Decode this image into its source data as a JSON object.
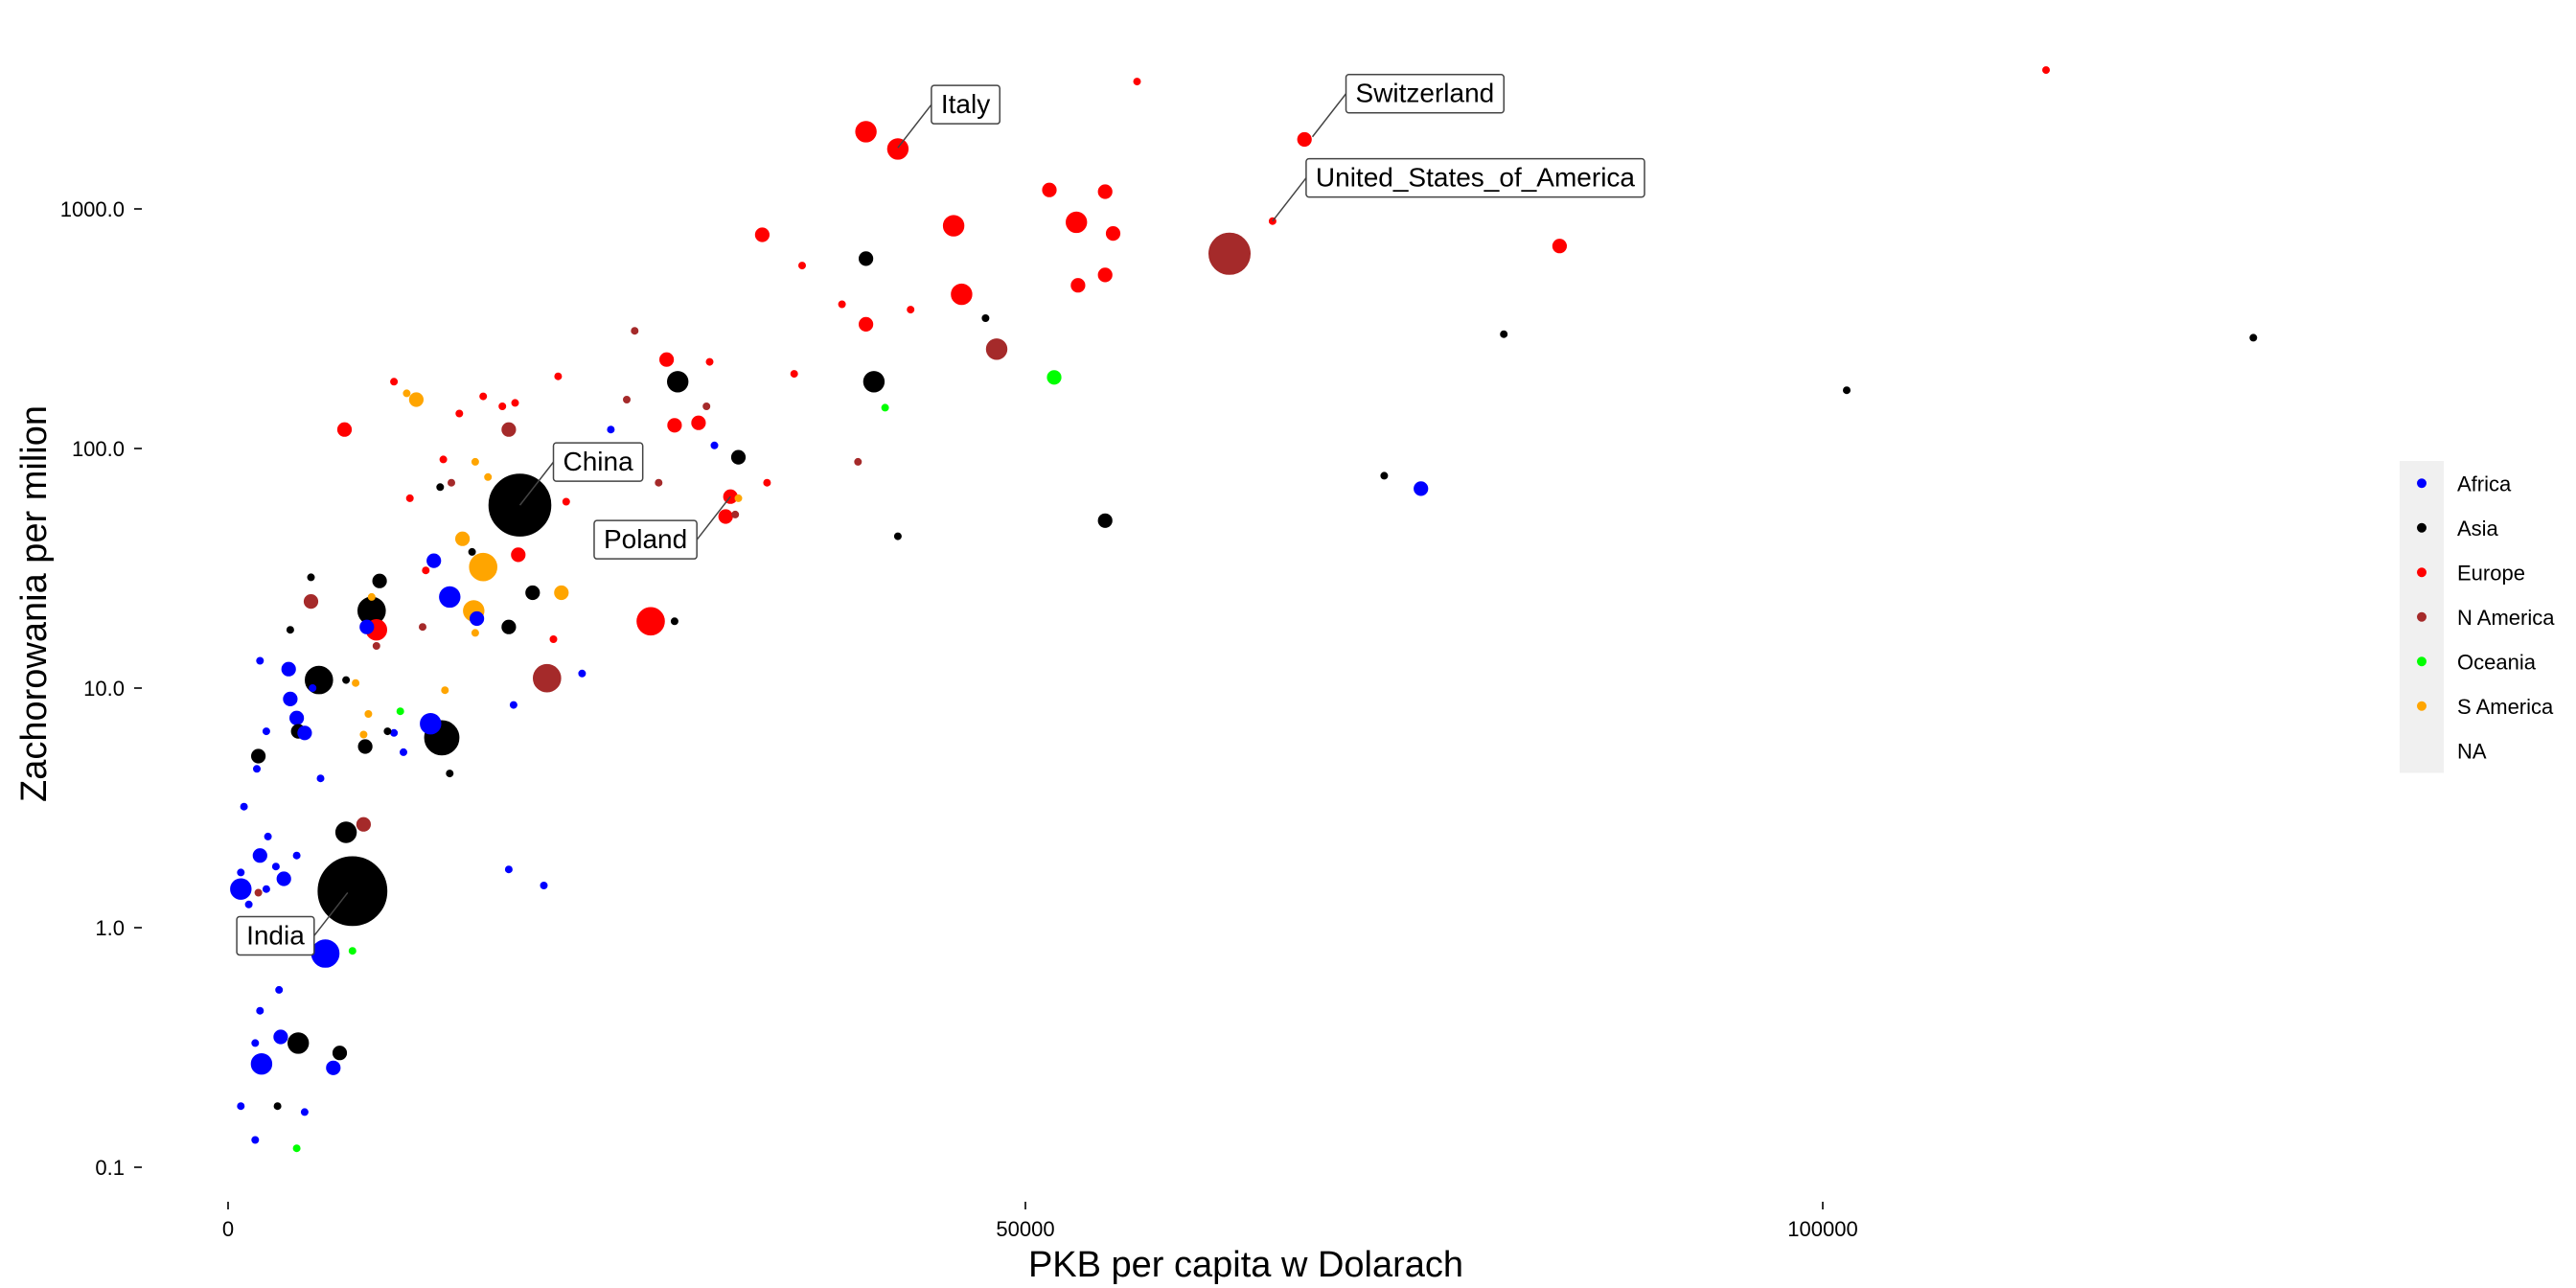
{
  "chart_data": {
    "type": "scatter",
    "xlabel": "PKB per capita w Dolarach",
    "ylabel": "Zachorowania per milion",
    "x_scale": "linear",
    "y_scale": "log10",
    "xlim": [
      -3000,
      145000
    ],
    "ylim": [
      0.075,
      5000
    ],
    "x_ticks": [
      {
        "value": 0,
        "label": "0"
      },
      {
        "value": 50000,
        "label": "50000"
      },
      {
        "value": 100000,
        "label": "100000"
      }
    ],
    "y_ticks": [
      {
        "value": 0.1,
        "label": "0.1"
      },
      {
        "value": 1,
        "label": "1.0"
      },
      {
        "value": 10,
        "label": "10.0"
      },
      {
        "value": 100,
        "label": "100.0"
      },
      {
        "value": 1000,
        "label": "1000.0"
      }
    ],
    "grid": false,
    "legend_position": "right",
    "legend": [
      {
        "label": "Africa",
        "color": "#0000ff"
      },
      {
        "label": "Asia",
        "color": "#000000"
      },
      {
        "label": "Europe",
        "color": "#ff0000"
      },
      {
        "label": "N America",
        "color": "#a52a2a"
      },
      {
        "label": "Oceania",
        "color": "#00ff00"
      },
      {
        "label": "S America",
        "color": "#ffa500"
      },
      {
        "label": "NA",
        "color": ""
      }
    ],
    "colors": {
      "Africa": "#0000ff",
      "Asia": "#000000",
      "Europe": "#ff0000",
      "N America": "#a52a2a",
      "Oceania": "#00ff00",
      "S America": "#ffa500"
    },
    "annotations": [
      {
        "label": "Italy",
        "x": 42000,
        "y": 1800,
        "offset": "upper-right"
      },
      {
        "label": "Switzerland",
        "x": 68000,
        "y": 2000,
        "offset": "upper-right"
      },
      {
        "label": "United_States_of_America",
        "x": 65500,
        "y": 890,
        "offset": "upper-right"
      },
      {
        "label": "China",
        "x": 18300,
        "y": 58,
        "offset": "upper-right"
      },
      {
        "label": "Poland",
        "x": 31500,
        "y": 63,
        "offset": "lower-left"
      },
      {
        "label": "India",
        "x": 7500,
        "y": 1.4,
        "offset": "lower-left"
      }
    ],
    "points": [
      {
        "x": 57000,
        "y": 3400,
        "group": "Europe",
        "size": 1
      },
      {
        "x": 114000,
        "y": 3800,
        "group": "Europe",
        "size": 1
      },
      {
        "x": 67500,
        "y": 1950,
        "group": "Europe",
        "size": 2
      },
      {
        "x": 40000,
        "y": 2100,
        "group": "Europe",
        "size": 3
      },
      {
        "x": 42000,
        "y": 1780,
        "group": "Europe",
        "size": 3
      },
      {
        "x": 51500,
        "y": 1200,
        "group": "Europe",
        "size": 2
      },
      {
        "x": 55000,
        "y": 1180,
        "group": "Europe",
        "size": 2
      },
      {
        "x": 45500,
        "y": 850,
        "group": "Europe",
        "size": 3
      },
      {
        "x": 53200,
        "y": 880,
        "group": "Europe",
        "size": 3
      },
      {
        "x": 55500,
        "y": 790,
        "group": "Europe",
        "size": 2
      },
      {
        "x": 65500,
        "y": 890,
        "group": "Europe",
        "size": 1
      },
      {
        "x": 62800,
        "y": 650,
        "group": "N America",
        "size": 6
      },
      {
        "x": 33500,
        "y": 780,
        "group": "Europe",
        "size": 2
      },
      {
        "x": 36000,
        "y": 580,
        "group": "Europe",
        "size": 1
      },
      {
        "x": 40000,
        "y": 620,
        "group": "Asia",
        "size": 2
      },
      {
        "x": 55000,
        "y": 530,
        "group": "Europe",
        "size": 2
      },
      {
        "x": 53300,
        "y": 480,
        "group": "Europe",
        "size": 2
      },
      {
        "x": 46000,
        "y": 440,
        "group": "Europe",
        "size": 3
      },
      {
        "x": 83500,
        "y": 700,
        "group": "Europe",
        "size": 2
      },
      {
        "x": 38500,
        "y": 400,
        "group": "Europe",
        "size": 1
      },
      {
        "x": 42800,
        "y": 380,
        "group": "Europe",
        "size": 1
      },
      {
        "x": 47500,
        "y": 350,
        "group": "Asia",
        "size": 1
      },
      {
        "x": 40000,
        "y": 330,
        "group": "Europe",
        "size": 2
      },
      {
        "x": 48200,
        "y": 260,
        "group": "N America",
        "size": 3
      },
      {
        "x": 80000,
        "y": 300,
        "group": "Asia",
        "size": 1
      },
      {
        "x": 127000,
        "y": 290,
        "group": "Asia",
        "size": 1
      },
      {
        "x": 25500,
        "y": 310,
        "group": "N America",
        "size": 1
      },
      {
        "x": 27500,
        "y": 235,
        "group": "Europe",
        "size": 2
      },
      {
        "x": 30200,
        "y": 230,
        "group": "Europe",
        "size": 1
      },
      {
        "x": 35500,
        "y": 205,
        "group": "Europe",
        "size": 1
      },
      {
        "x": 20700,
        "y": 200,
        "group": "Europe",
        "size": 1
      },
      {
        "x": 51800,
        "y": 198,
        "group": "Oceania",
        "size": 2
      },
      {
        "x": 40500,
        "y": 190,
        "group": "Asia",
        "size": 3
      },
      {
        "x": 28200,
        "y": 190,
        "group": "Asia",
        "size": 3
      },
      {
        "x": 10400,
        "y": 190,
        "group": "Europe",
        "size": 1
      },
      {
        "x": 11200,
        "y": 170,
        "group": "S America",
        "size": 1
      },
      {
        "x": 11800,
        "y": 160,
        "group": "S America",
        "size": 2
      },
      {
        "x": 16000,
        "y": 165,
        "group": "Europe",
        "size": 1
      },
      {
        "x": 18000,
        "y": 155,
        "group": "Europe",
        "size": 1
      },
      {
        "x": 17200,
        "y": 150,
        "group": "Europe",
        "size": 1
      },
      {
        "x": 25000,
        "y": 160,
        "group": "N America",
        "size": 1
      },
      {
        "x": 101500,
        "y": 175,
        "group": "Asia",
        "size": 1
      },
      {
        "x": 41200,
        "y": 148,
        "group": "Oceania",
        "size": 1
      },
      {
        "x": 30000,
        "y": 150,
        "group": "N America",
        "size": 1
      },
      {
        "x": 14500,
        "y": 140,
        "group": "Europe",
        "size": 1
      },
      {
        "x": 29500,
        "y": 128,
        "group": "Europe",
        "size": 2
      },
      {
        "x": 28000,
        "y": 125,
        "group": "Europe",
        "size": 2
      },
      {
        "x": 7300,
        "y": 120,
        "group": "Europe",
        "size": 2
      },
      {
        "x": 17600,
        "y": 120,
        "group": "N America",
        "size": 2
      },
      {
        "x": 24000,
        "y": 120,
        "group": "Africa",
        "size": 1
      },
      {
        "x": 30500,
        "y": 103,
        "group": "Africa",
        "size": 1
      },
      {
        "x": 32000,
        "y": 92,
        "group": "Asia",
        "size": 2
      },
      {
        "x": 13500,
        "y": 90,
        "group": "Europe",
        "size": 1
      },
      {
        "x": 15500,
        "y": 88,
        "group": "S America",
        "size": 1
      },
      {
        "x": 39500,
        "y": 88,
        "group": "N America",
        "size": 1
      },
      {
        "x": 72500,
        "y": 77,
        "group": "Asia",
        "size": 1
      },
      {
        "x": 33800,
        "y": 72,
        "group": "Europe",
        "size": 1
      },
      {
        "x": 27000,
        "y": 72,
        "group": "N America",
        "size": 1
      },
      {
        "x": 14000,
        "y": 72,
        "group": "N America",
        "size": 1
      },
      {
        "x": 13300,
        "y": 69,
        "group": "Asia",
        "size": 1
      },
      {
        "x": 74800,
        "y": 68,
        "group": "Africa",
        "size": 2
      },
      {
        "x": 31500,
        "y": 63,
        "group": "Europe",
        "size": 2
      },
      {
        "x": 32000,
        "y": 62,
        "group": "S America",
        "size": 1
      },
      {
        "x": 16300,
        "y": 76,
        "group": "S America",
        "size": 1
      },
      {
        "x": 11400,
        "y": 62,
        "group": "Europe",
        "size": 1
      },
      {
        "x": 18300,
        "y": 58,
        "group": "Asia",
        "size": 9
      },
      {
        "x": 21200,
        "y": 60,
        "group": "Europe",
        "size": 1
      },
      {
        "x": 31800,
        "y": 53,
        "group": "N America",
        "size": 1
      },
      {
        "x": 31200,
        "y": 52,
        "group": "Europe",
        "size": 2
      },
      {
        "x": 55000,
        "y": 50,
        "group": "Asia",
        "size": 2
      },
      {
        "x": 42000,
        "y": 43,
        "group": "Asia",
        "size": 1
      },
      {
        "x": 14700,
        "y": 42,
        "group": "S America",
        "size": 2
      },
      {
        "x": 15300,
        "y": 37,
        "group": "Asia",
        "size": 1
      },
      {
        "x": 18200,
        "y": 36,
        "group": "Europe",
        "size": 2
      },
      {
        "x": 12900,
        "y": 34,
        "group": "Africa",
        "size": 2
      },
      {
        "x": 12400,
        "y": 31,
        "group": "Europe",
        "size": 1
      },
      {
        "x": 16000,
        "y": 32,
        "group": "S America",
        "size": 4
      },
      {
        "x": 5200,
        "y": 29,
        "group": "Asia",
        "size": 1
      },
      {
        "x": 9500,
        "y": 28,
        "group": "Asia",
        "size": 2
      },
      {
        "x": 19100,
        "y": 25,
        "group": "Asia",
        "size": 2
      },
      {
        "x": 20900,
        "y": 25,
        "group": "S America",
        "size": 2
      },
      {
        "x": 13900,
        "y": 24,
        "group": "Africa",
        "size": 3
      },
      {
        "x": 9000,
        "y": 24,
        "group": "S America",
        "size": 1
      },
      {
        "x": 5200,
        "y": 23,
        "group": "N America",
        "size": 2
      },
      {
        "x": 9000,
        "y": 21,
        "group": "Asia",
        "size": 4
      },
      {
        "x": 15400,
        "y": 21,
        "group": "S America",
        "size": 3
      },
      {
        "x": 15600,
        "y": 19.5,
        "group": "Africa",
        "size": 2
      },
      {
        "x": 26500,
        "y": 19,
        "group": "Europe",
        "size": 4
      },
      {
        "x": 28000,
        "y": 19,
        "group": "Asia",
        "size": 1
      },
      {
        "x": 8700,
        "y": 18,
        "group": "Africa",
        "size": 2
      },
      {
        "x": 9300,
        "y": 17.5,
        "group": "Europe",
        "size": 3
      },
      {
        "x": 12200,
        "y": 18,
        "group": "N America",
        "size": 1
      },
      {
        "x": 17600,
        "y": 18,
        "group": "Asia",
        "size": 2
      },
      {
        "x": 3900,
        "y": 17.5,
        "group": "Asia",
        "size": 1
      },
      {
        "x": 15500,
        "y": 17,
        "group": "S America",
        "size": 1
      },
      {
        "x": 20400,
        "y": 16,
        "group": "Europe",
        "size": 1
      },
      {
        "x": 9300,
        "y": 15,
        "group": "N America",
        "size": 1
      },
      {
        "x": 2000,
        "y": 13,
        "group": "Africa",
        "size": 1
      },
      {
        "x": 3800,
        "y": 12,
        "group": "Africa",
        "size": 2
      },
      {
        "x": 22200,
        "y": 11.5,
        "group": "Africa",
        "size": 1
      },
      {
        "x": 20000,
        "y": 11,
        "group": "N America",
        "size": 4
      },
      {
        "x": 5700,
        "y": 10.8,
        "group": "Asia",
        "size": 4
      },
      {
        "x": 7400,
        "y": 10.8,
        "group": "Asia",
        "size": 1
      },
      {
        "x": 8000,
        "y": 10.5,
        "group": "S America",
        "size": 1
      },
      {
        "x": 13600,
        "y": 9.8,
        "group": "S America",
        "size": 1
      },
      {
        "x": 5300,
        "y": 10,
        "group": "Africa",
        "size": 1
      },
      {
        "x": 3900,
        "y": 9,
        "group": "Africa",
        "size": 2
      },
      {
        "x": 17900,
        "y": 8.5,
        "group": "Africa",
        "size": 1
      },
      {
        "x": 10800,
        "y": 8,
        "group": "Oceania",
        "size": 1
      },
      {
        "x": 8800,
        "y": 7.8,
        "group": "S America",
        "size": 1
      },
      {
        "x": 4300,
        "y": 7.5,
        "group": "Africa",
        "size": 2
      },
      {
        "x": 12700,
        "y": 7.1,
        "group": "Africa",
        "size": 3
      },
      {
        "x": 2400,
        "y": 6.6,
        "group": "Africa",
        "size": 1
      },
      {
        "x": 4400,
        "y": 6.6,
        "group": "Asia",
        "size": 2
      },
      {
        "x": 4800,
        "y": 6.5,
        "group": "Africa",
        "size": 2
      },
      {
        "x": 10400,
        "y": 6.5,
        "group": "Africa",
        "size": 1
      },
      {
        "x": 10000,
        "y": 6.6,
        "group": "Asia",
        "size": 1
      },
      {
        "x": 8500,
        "y": 6.4,
        "group": "S America",
        "size": 1
      },
      {
        "x": 13400,
        "y": 6.2,
        "group": "Asia",
        "size": 5
      },
      {
        "x": 8600,
        "y": 5.7,
        "group": "Asia",
        "size": 2
      },
      {
        "x": 11000,
        "y": 5.4,
        "group": "Africa",
        "size": 1
      },
      {
        "x": 1900,
        "y": 5.2,
        "group": "Asia",
        "size": 2
      },
      {
        "x": 1800,
        "y": 4.6,
        "group": "Africa",
        "size": 1
      },
      {
        "x": 13900,
        "y": 4.4,
        "group": "Asia",
        "size": 1
      },
      {
        "x": 5800,
        "y": 4.2,
        "group": "Africa",
        "size": 1
      },
      {
        "x": 1000,
        "y": 3.2,
        "group": "Africa",
        "size": 1
      },
      {
        "x": 8500,
        "y": 2.7,
        "group": "N America",
        "size": 2
      },
      {
        "x": 7400,
        "y": 2.5,
        "group": "Asia",
        "size": 3
      },
      {
        "x": 2500,
        "y": 2.4,
        "group": "Africa",
        "size": 1
      },
      {
        "x": 2000,
        "y": 2,
        "group": "Africa",
        "size": 2
      },
      {
        "x": 4300,
        "y": 2,
        "group": "Africa",
        "size": 1
      },
      {
        "x": 3000,
        "y": 1.8,
        "group": "Africa",
        "size": 1
      },
      {
        "x": 17600,
        "y": 1.75,
        "group": "Africa",
        "size": 1
      },
      {
        "x": 800,
        "y": 1.7,
        "group": "Africa",
        "size": 1
      },
      {
        "x": 3500,
        "y": 1.6,
        "group": "Africa",
        "size": 2
      },
      {
        "x": 19800,
        "y": 1.5,
        "group": "Africa",
        "size": 1
      },
      {
        "x": 800,
        "y": 1.45,
        "group": "Africa",
        "size": 3
      },
      {
        "x": 1900,
        "y": 1.4,
        "group": "N America",
        "size": 1
      },
      {
        "x": 2400,
        "y": 1.45,
        "group": "Africa",
        "size": 1
      },
      {
        "x": 7800,
        "y": 1.42,
        "group": "Asia",
        "size": 10
      },
      {
        "x": 1300,
        "y": 1.25,
        "group": "Africa",
        "size": 1
      },
      {
        "x": 6100,
        "y": 0.78,
        "group": "Africa",
        "size": 4
      },
      {
        "x": 7800,
        "y": 0.8,
        "group": "Oceania",
        "size": 1
      },
      {
        "x": 3200,
        "y": 0.55,
        "group": "Africa",
        "size": 1
      },
      {
        "x": 2000,
        "y": 0.45,
        "group": "Africa",
        "size": 1
      },
      {
        "x": 1700,
        "y": 0.33,
        "group": "Africa",
        "size": 1
      },
      {
        "x": 3300,
        "y": 0.35,
        "group": "Africa",
        "size": 2
      },
      {
        "x": 4400,
        "y": 0.33,
        "group": "Asia",
        "size": 3
      },
      {
        "x": 7000,
        "y": 0.3,
        "group": "Asia",
        "size": 2
      },
      {
        "x": 2100,
        "y": 0.27,
        "group": "Africa",
        "size": 3
      },
      {
        "x": 6600,
        "y": 0.26,
        "group": "Africa",
        "size": 2
      },
      {
        "x": 800,
        "y": 0.18,
        "group": "Africa",
        "size": 1
      },
      {
        "x": 3100,
        "y": 0.18,
        "group": "Asia",
        "size": 1
      },
      {
        "x": 4800,
        "y": 0.17,
        "group": "Africa",
        "size": 1
      },
      {
        "x": 1700,
        "y": 0.13,
        "group": "Africa",
        "size": 1
      },
      {
        "x": 4300,
        "y": 0.12,
        "group": "Oceania",
        "size": 1
      }
    ]
  }
}
